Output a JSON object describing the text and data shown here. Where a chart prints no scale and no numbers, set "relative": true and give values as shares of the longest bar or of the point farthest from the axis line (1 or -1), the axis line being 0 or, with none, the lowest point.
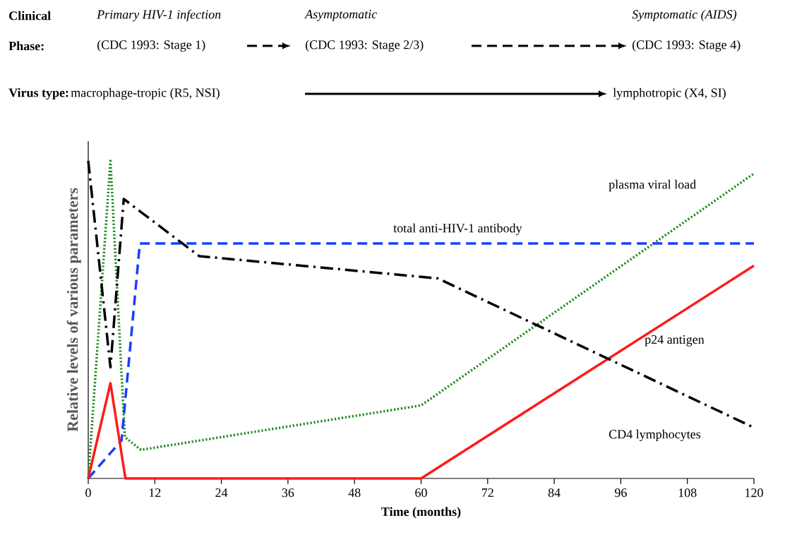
{
  "chart_data": {
    "type": "line",
    "relative": true,
    "xlabel": "Time (months)",
    "ylabel": "Relative levels of various parameters",
    "xlim": [
      0,
      120
    ],
    "xticks": [
      0,
      12,
      24,
      36,
      48,
      60,
      72,
      84,
      96,
      108,
      120
    ],
    "annotations": [
      "Clinical",
      "Phase:",
      "Primary HIV-1 infection",
      "Asymptomatic",
      "Symptomatic (AIDS)",
      "(CDC 1993: Stage 1)",
      "(CDC 1993: Stage 2/3)",
      "(CDC 1993: Stage 4)",
      "Virus type:",
      "macrophage-tropic (R5, NSI)",
      "lymphotropic (X4, SI)"
    ],
    "series": [
      {
        "name": "plasma viral load",
        "color": "#1a8a1a",
        "line_style": "dotted",
        "x": [
          0,
          4,
          6.6,
          9.5,
          60,
          120
        ],
        "values": [
          0,
          1.0,
          0.13,
          0.09,
          0.23,
          0.96
        ]
      },
      {
        "name": "total anti-HIV-1 antibody",
        "color": "#1a3cff",
        "line_style": "dashed",
        "x": [
          0,
          6,
          9.3,
          120
        ],
        "values": [
          0,
          0.12,
          0.74,
          0.74
        ]
      },
      {
        "name": "p24 antigen",
        "color": "#ff1a1a",
        "line_style": "solid",
        "x": [
          0,
          4,
          6.7,
          60,
          120
        ],
        "values": [
          0,
          0.3,
          0,
          0,
          0.67
        ]
      },
      {
        "name": "CD4 lymphocytes",
        "color": "#000000",
        "line_style": "dashdot",
        "x": [
          0,
          4,
          6.4,
          20,
          63,
          120
        ],
        "values": [
          1.0,
          0.35,
          0.88,
          0.7,
          0.63,
          0.16
        ]
      }
    ]
  }
}
